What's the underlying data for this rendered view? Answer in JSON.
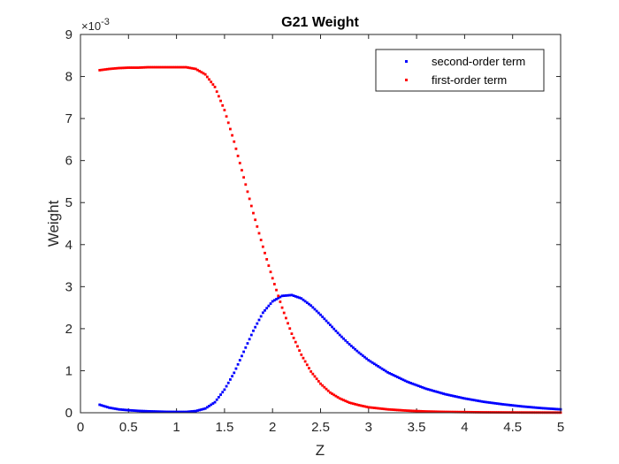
{
  "chart_data": {
    "type": "scatter",
    "title": "G21 Weight",
    "xlabel": "Z",
    "ylabel": "Weight",
    "y_exponent_base": "×10",
    "y_exponent_power": "-3",
    "xlim": [
      0,
      5
    ],
    "ylim": [
      0,
      9
    ],
    "x_ticks": [
      0,
      0.5,
      1,
      1.5,
      2,
      2.5,
      3,
      3.5,
      4,
      4.5,
      5
    ],
    "x_tick_labels": [
      "0",
      "0.5",
      "1",
      "1.5",
      "2",
      "2.5",
      "3",
      "3.5",
      "4",
      "4.5",
      "5"
    ],
    "y_ticks": [
      0,
      1,
      2,
      3,
      4,
      5,
      6,
      7,
      8,
      9
    ],
    "y_tick_labels": [
      "0",
      "1",
      "2",
      "3",
      "4",
      "5",
      "6",
      "7",
      "8",
      "9"
    ],
    "grid": false,
    "legend_position": "top-right",
    "series": [
      {
        "name": "second-order term",
        "color": "#0000ff",
        "x": [
          0.2,
          0.3,
          0.4,
          0.5,
          0.6,
          0.7,
          0.8,
          0.9,
          1.0,
          1.1,
          1.2,
          1.3,
          1.4,
          1.5,
          1.6,
          1.7,
          1.8,
          1.9,
          2.0,
          2.1,
          2.2,
          2.3,
          2.4,
          2.5,
          2.6,
          2.7,
          2.8,
          2.9,
          3.0,
          3.2,
          3.4,
          3.6,
          3.8,
          4.0,
          4.2,
          4.4,
          4.6,
          4.8,
          5.0
        ],
        "y": [
          0.19,
          0.12,
          0.08,
          0.06,
          0.045,
          0.035,
          0.028,
          0.022,
          0.02,
          0.02,
          0.04,
          0.1,
          0.25,
          0.55,
          0.95,
          1.45,
          1.95,
          2.38,
          2.65,
          2.78,
          2.8,
          2.72,
          2.55,
          2.33,
          2.09,
          1.85,
          1.63,
          1.43,
          1.25,
          0.96,
          0.74,
          0.57,
          0.44,
          0.34,
          0.26,
          0.2,
          0.15,
          0.11,
          0.08
        ]
      },
      {
        "name": "first-order term",
        "color": "#ff0000",
        "x": [
          0.2,
          0.3,
          0.4,
          0.5,
          0.6,
          0.7,
          0.8,
          0.9,
          1.0,
          1.1,
          1.2,
          1.3,
          1.4,
          1.5,
          1.6,
          1.7,
          1.8,
          1.9,
          2.0,
          2.1,
          2.2,
          2.3,
          2.4,
          2.5,
          2.6,
          2.7,
          2.8,
          2.9,
          3.0,
          3.2,
          3.4,
          3.6,
          3.8,
          4.0,
          4.2,
          4.4,
          4.6,
          4.8,
          5.0
        ],
        "y": [
          8.15,
          8.18,
          8.2,
          8.21,
          8.21,
          8.22,
          8.22,
          8.22,
          8.22,
          8.22,
          8.18,
          8.05,
          7.75,
          7.2,
          6.45,
          5.6,
          4.75,
          3.95,
          3.2,
          2.5,
          1.88,
          1.38,
          0.98,
          0.69,
          0.48,
          0.34,
          0.24,
          0.18,
          0.13,
          0.08,
          0.05,
          0.03,
          0.02,
          0.015,
          0.01,
          0.008,
          0.006,
          0.005,
          0.004
        ]
      }
    ]
  }
}
